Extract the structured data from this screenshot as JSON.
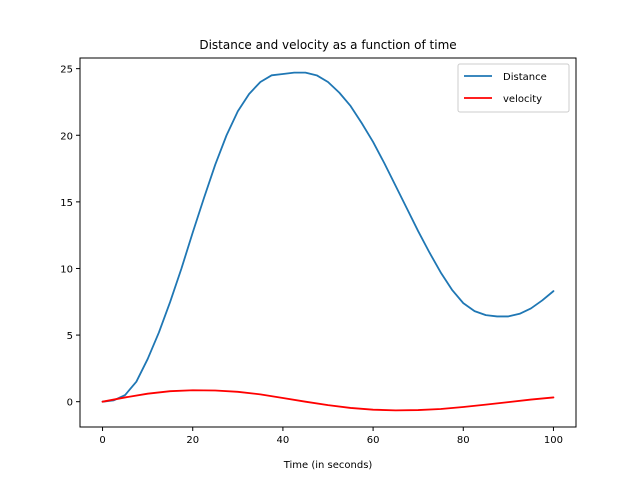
{
  "chart_data": {
    "type": "line",
    "title": "Distance and velocity as a function of time",
    "xlabel": "Time (in seconds)",
    "ylabel": "",
    "xlim": [
      -5,
      105
    ],
    "ylim": [
      -1.9,
      25.8
    ],
    "xticks": [
      0,
      20,
      40,
      60,
      80,
      100
    ],
    "yticks": [
      0,
      5,
      10,
      15,
      20,
      25
    ],
    "grid": false,
    "legend_position": "top-right",
    "series": [
      {
        "name": "Distance",
        "color": "#1f77b4",
        "x": [
          0,
          2.5,
          5,
          7.5,
          10,
          12.5,
          15,
          17.5,
          20,
          22.5,
          25,
          27.5,
          30,
          32.5,
          35,
          37.5,
          40,
          42.5,
          45,
          47.5,
          50,
          52.5,
          55,
          57.5,
          60,
          62.5,
          65,
          67.5,
          70,
          72.5,
          75,
          77.5,
          80,
          82.5,
          85,
          87.5,
          90,
          92.5,
          95,
          97.5,
          100
        ],
        "y": [
          0.0,
          0.1,
          0.5,
          1.5,
          3.2,
          5.2,
          7.5,
          10.0,
          12.7,
          15.3,
          17.8,
          20.0,
          21.8,
          23.1,
          24.0,
          24.5,
          24.6,
          24.7,
          24.7,
          24.5,
          24.0,
          23.2,
          22.2,
          20.9,
          19.5,
          17.9,
          16.2,
          14.5,
          12.8,
          11.2,
          9.7,
          8.4,
          7.4,
          6.8,
          6.5,
          6.4,
          6.4,
          6.6,
          7.0,
          7.6,
          8.3
        ]
      },
      {
        "name": "velocity",
        "color": "#ff0000",
        "x": [
          0,
          5,
          10,
          15,
          20,
          25,
          30,
          35,
          40,
          45,
          50,
          55,
          60,
          65,
          70,
          75,
          80,
          85,
          90,
          95,
          100
        ],
        "y": [
          0.0,
          0.32,
          0.6,
          0.79,
          0.86,
          0.84,
          0.74,
          0.55,
          0.28,
          0.0,
          -0.26,
          -0.47,
          -0.6,
          -0.65,
          -0.63,
          -0.55,
          -0.4,
          -0.22,
          -0.03,
          0.16,
          0.32
        ]
      }
    ]
  }
}
